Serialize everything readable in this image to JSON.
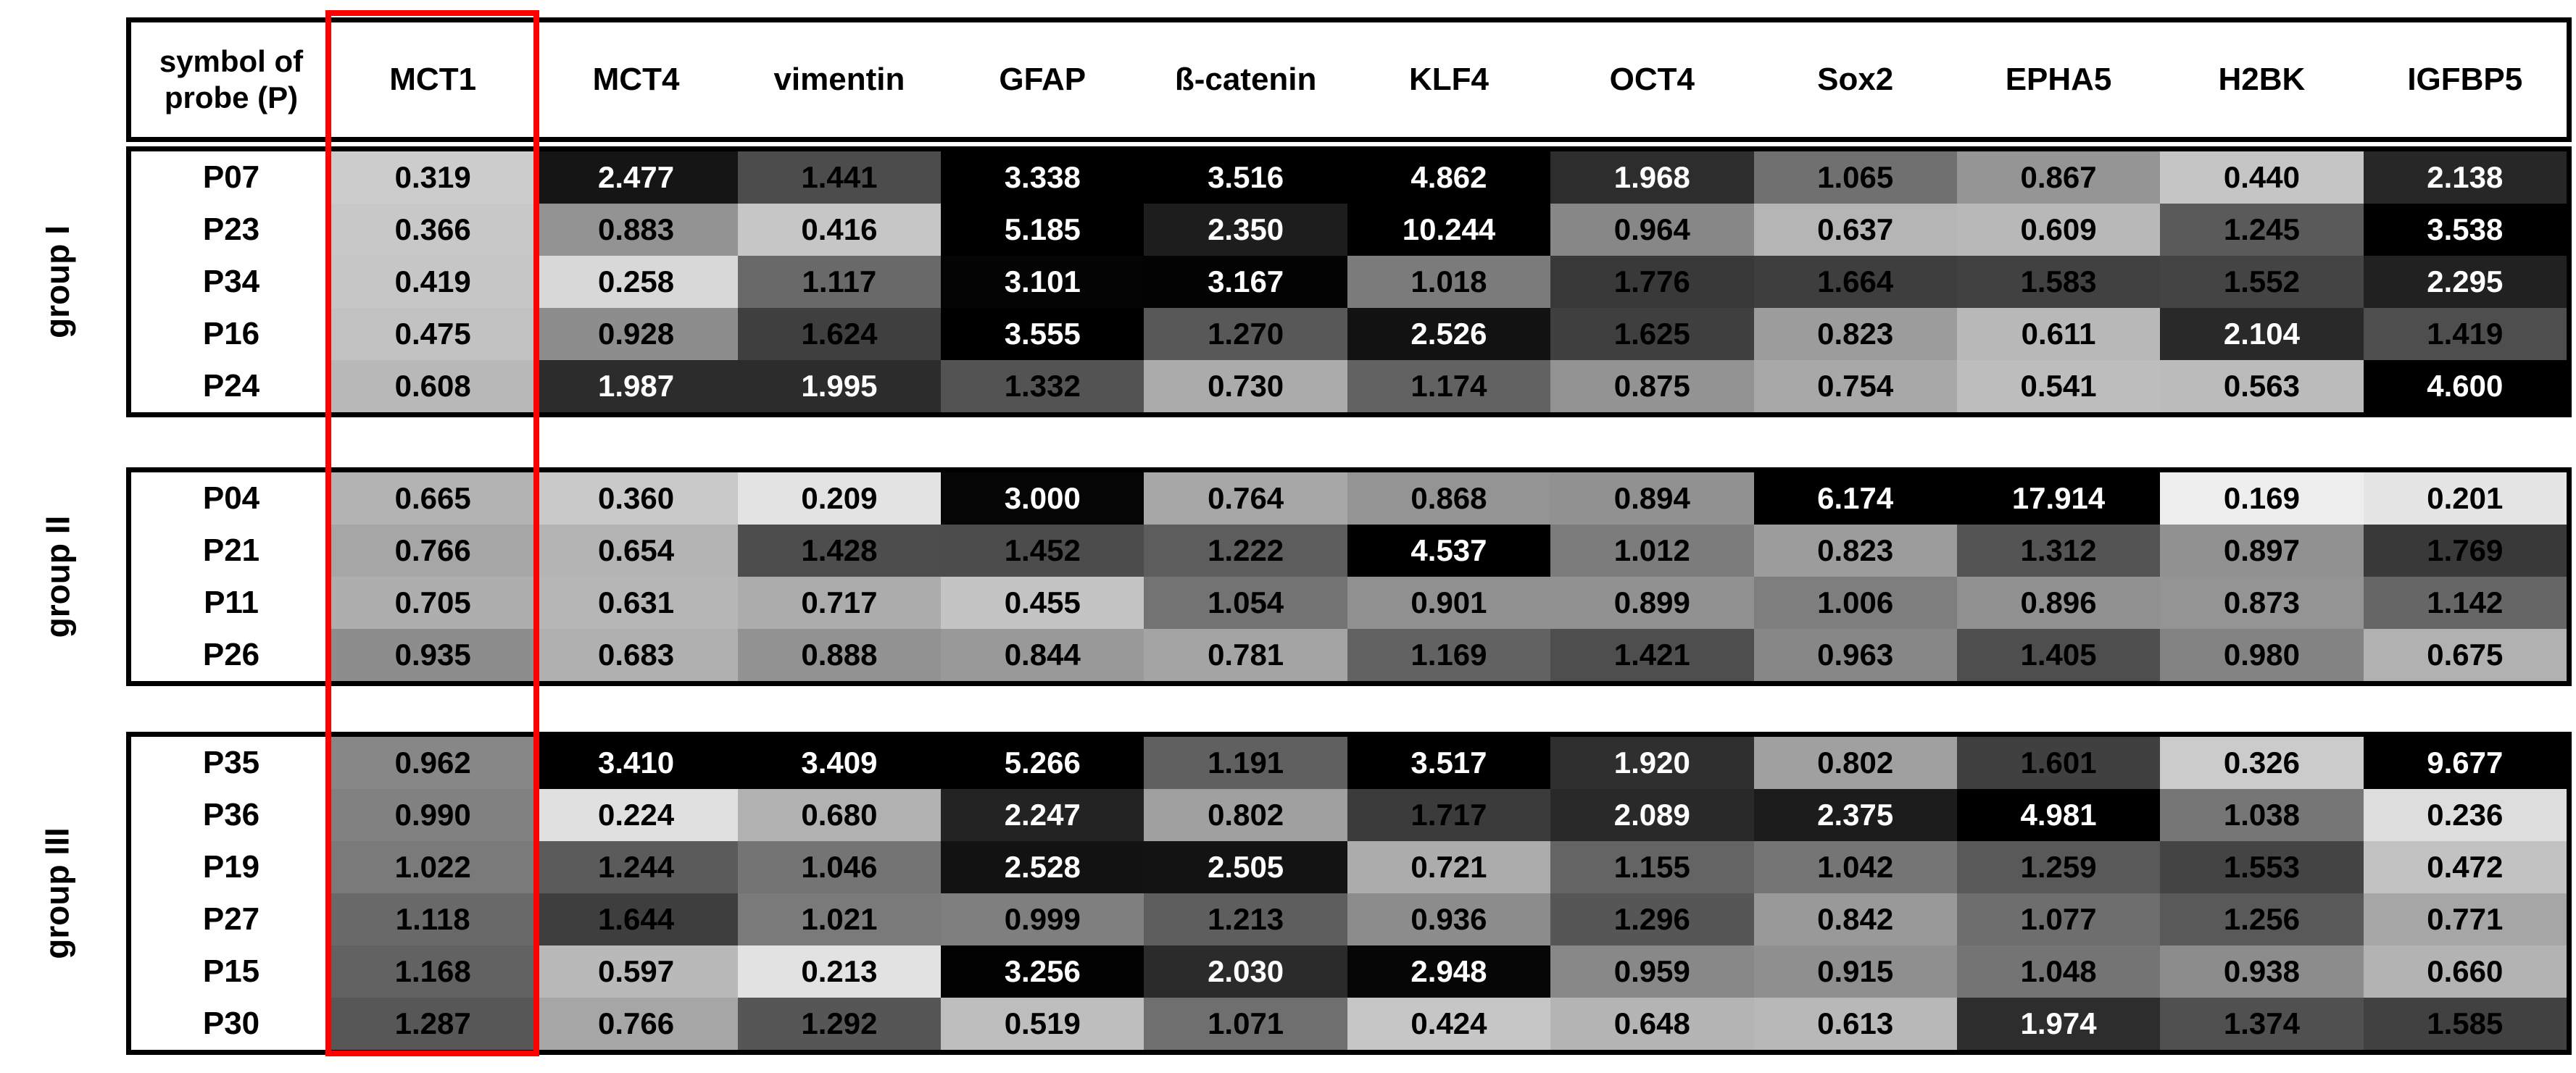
{
  "chart_data": {
    "type": "heatmap",
    "title": "",
    "row_label_header": "symbol of probe (P)",
    "columns": [
      "MCT1",
      "MCT4",
      "vimentin",
      "GFAP",
      "ß-catenin",
      "KLF4",
      "OCT4",
      "Sox2",
      "EPHA5",
      "H2BK",
      "IGFBP5"
    ],
    "groups": [
      {
        "label": "group I",
        "rows": [
          {
            "probe": "P07",
            "values": [
              "0.319",
              "2.477",
              "1.441",
              "3.338",
              "3.516",
              "4.862",
              "1.968",
              "1.065",
              "0.867",
              "0.440",
              "2.138"
            ]
          },
          {
            "probe": "P23",
            "values": [
              "0.366",
              "0.883",
              "0.416",
              "5.185",
              "2.350",
              "10.244",
              "0.964",
              "0.637",
              "0.609",
              "1.245",
              "3.538"
            ]
          },
          {
            "probe": "P34",
            "values": [
              "0.419",
              "0.258",
              "1.117",
              "3.101",
              "3.167",
              "1.018",
              "1.776",
              "1.664",
              "1.583",
              "1.552",
              "2.295"
            ]
          },
          {
            "probe": "P16",
            "values": [
              "0.475",
              "0.928",
              "1.624",
              "3.555",
              "1.270",
              "2.526",
              "1.625",
              "0.823",
              "0.611",
              "2.104",
              "1.419"
            ]
          },
          {
            "probe": "P24",
            "values": [
              "0.608",
              "1.987",
              "1.995",
              "1.332",
              "0.730",
              "1.174",
              "0.875",
              "0.754",
              "0.541",
              "0.563",
              "4.600"
            ]
          }
        ]
      },
      {
        "label": "group II",
        "rows": [
          {
            "probe": "P04",
            "values": [
              "0.665",
              "0.360",
              "0.209",
              "3.000",
              "0.764",
              "0.868",
              "0.894",
              "6.174",
              "17.914",
              "0.169",
              "0.201"
            ]
          },
          {
            "probe": "P21",
            "values": [
              "0.766",
              "0.654",
              "1.428",
              "1.452",
              "1.222",
              "4.537",
              "1.012",
              "0.823",
              "1.312",
              "0.897",
              "1.769"
            ]
          },
          {
            "probe": "P11",
            "values": [
              "0.705",
              "0.631",
              "0.717",
              "0.455",
              "1.054",
              "0.901",
              "0.899",
              "1.006",
              "0.896",
              "0.873",
              "1.142"
            ]
          },
          {
            "probe": "P26",
            "values": [
              "0.935",
              "0.683",
              "0.888",
              "0.844",
              "0.781",
              "1.169",
              "1.421",
              "0.963",
              "1.405",
              "0.980",
              "0.675"
            ]
          }
        ]
      },
      {
        "label": "group III",
        "rows": [
          {
            "probe": "P35",
            "values": [
              "0.962",
              "3.410",
              "3.409",
              "5.266",
              "1.191",
              "3.517",
              "1.920",
              "0.802",
              "1.601",
              "0.326",
              "9.677"
            ]
          },
          {
            "probe": "P36",
            "values": [
              "0.990",
              "0.224",
              "0.680",
              "2.247",
              "0.802",
              "1.717",
              "2.089",
              "2.375",
              "4.981",
              "1.038",
              "0.236"
            ]
          },
          {
            "probe": "P19",
            "values": [
              "1.022",
              "1.244",
              "1.046",
              "2.528",
              "2.505",
              "0.721",
              "1.155",
              "1.042",
              "1.259",
              "1.553",
              "0.472"
            ]
          },
          {
            "probe": "P27",
            "values": [
              "1.118",
              "1.644",
              "1.021",
              "0.999",
              "1.213",
              "0.936",
              "1.296",
              "0.842",
              "1.077",
              "1.256",
              "0.771"
            ]
          },
          {
            "probe": "P15",
            "values": [
              "1.168",
              "0.597",
              "0.213",
              "3.256",
              "2.030",
              "2.948",
              "0.959",
              "0.915",
              "1.048",
              "0.938",
              "0.660"
            ]
          },
          {
            "probe": "P30",
            "values": [
              "1.287",
              "0.766",
              "1.292",
              "0.519",
              "1.071",
              "0.424",
              "0.648",
              "0.613",
              "1.974",
              "1.374",
              "1.585"
            ]
          }
        ]
      }
    ],
    "highlight": {
      "column": "MCT1",
      "color": "#ff0000"
    },
    "colormap": {
      "description": "value-to-gray background shading, black text on light cells, white text on very dark cells",
      "anchors": [
        [
          0.0,
          252
        ],
        [
          0.17,
          238
        ],
        [
          0.21,
          227
        ],
        [
          0.26,
          216
        ],
        [
          0.33,
          202
        ],
        [
          0.44,
          197
        ],
        [
          0.52,
          190
        ],
        [
          0.61,
          184
        ],
        [
          0.67,
          178
        ],
        [
          0.71,
          173
        ],
        [
          0.77,
          166
        ],
        [
          0.83,
          155
        ],
        [
          0.87,
          148
        ],
        [
          0.94,
          140
        ],
        [
          1.0,
          127
        ],
        [
          1.07,
          111
        ],
        [
          1.17,
          98
        ],
        [
          1.25,
          90
        ],
        [
          1.34,
          82
        ],
        [
          1.45,
          76
        ],
        [
          1.6,
          64
        ],
        [
          1.78,
          57
        ],
        [
          1.92,
          47
        ],
        [
          2.0,
          44
        ],
        [
          2.15,
          39
        ],
        [
          2.3,
          33
        ],
        [
          2.5,
          19
        ],
        [
          2.75,
          10
        ],
        [
          3.0,
          5
        ],
        [
          3.35,
          0
        ]
      ],
      "white_text_below_gray": 50,
      "border_color": "#000000",
      "label_text_color": "#000000"
    },
    "legend_position": "none",
    "grid": false
  }
}
